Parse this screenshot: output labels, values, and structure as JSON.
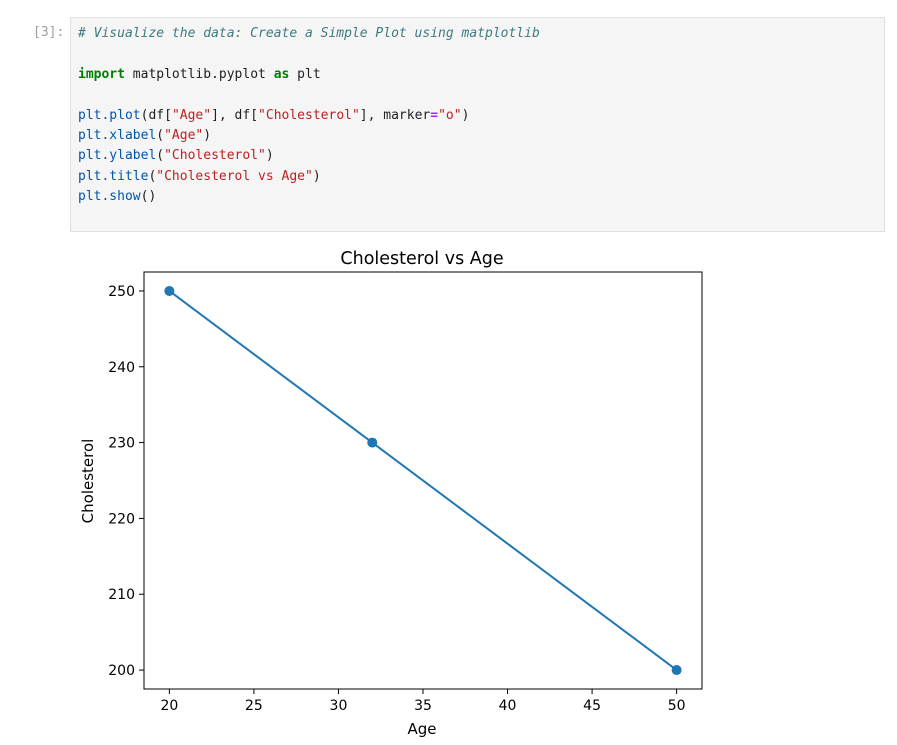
{
  "cell": {
    "prompt": "[3]:",
    "code": {
      "comment": "# Visualize the data: Create a Simple Plot using matplotlib",
      "import_kw": "import",
      "import_mod": " matplotlib.pyplot ",
      "as_kw": "as",
      "import_alias": " plt",
      "plot_fn": "plt.plot",
      "plot_args_1": "(df[",
      "plot_str_age": "\"Age\"",
      "plot_args_2": "], df[",
      "plot_str_chol": "\"Cholesterol\"",
      "plot_args_3": "], marker",
      "plot_eq": "=",
      "plot_str_marker": "\"o\"",
      "plot_args_4": ")",
      "xlabel_fn": "plt.xlabel",
      "xlabel_open": "(",
      "xlabel_str": "\"Age\"",
      "xlabel_close": ")",
      "ylabel_fn": "plt.ylabel",
      "ylabel_open": "(",
      "ylabel_str": "\"Cholesterol\"",
      "ylabel_close": ")",
      "title_fn": "plt.title",
      "title_open": "(",
      "title_str": "\"Cholesterol vs Age\"",
      "title_close": ")",
      "show_fn": "plt.show",
      "show_args": "()"
    }
  },
  "colors": {
    "series": "#1f77b4"
  },
  "chart_data": {
    "type": "line",
    "title": "Cholesterol vs Age",
    "xlabel": "Age",
    "ylabel": "Cholesterol",
    "x": [
      20,
      32,
      50
    ],
    "series": [
      {
        "values": [
          250,
          230,
          200
        ],
        "marker": "o"
      }
    ],
    "xlim": [
      18.5,
      51.5
    ],
    "ylim": [
      197.5,
      252.5
    ],
    "xticks": [
      20,
      25,
      30,
      35,
      40,
      45,
      50
    ],
    "yticks": [
      200,
      210,
      220,
      230,
      240,
      250
    ],
    "grid": false,
    "legend": "none"
  }
}
